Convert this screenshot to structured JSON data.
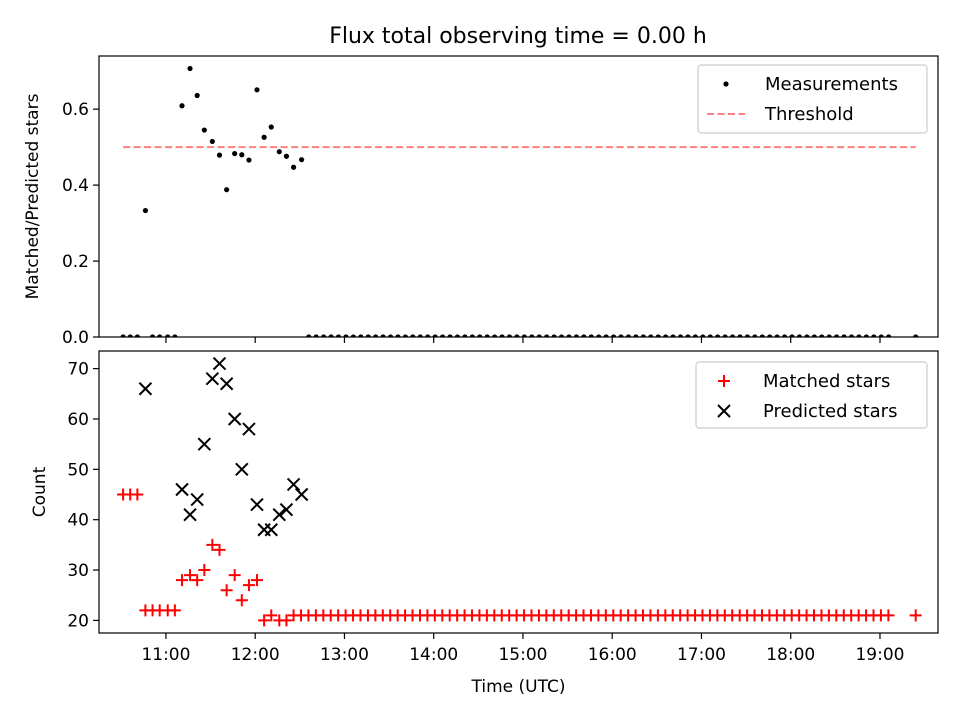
{
  "title": "Flux total observing time = 0.00 h",
  "chart_data": [
    {
      "type": "scatter",
      "ylabel": "Matched/Predicted stars",
      "xlim": [
        10.25,
        19.65
      ],
      "ylim": [
        0,
        0.74
      ],
      "x_ticks": [
        11,
        12,
        13,
        14,
        15,
        16,
        17,
        18,
        19
      ],
      "y_ticks": [
        {
          "value": 0.0,
          "label": "0.0"
        },
        {
          "value": 0.2,
          "label": "0.2"
        },
        {
          "value": 0.4,
          "label": "0.4"
        },
        {
          "value": 0.6,
          "label": "0.6"
        }
      ],
      "legend": {
        "location": "top-right"
      },
      "series": [
        {
          "name": "Measurements",
          "kind": "scatter",
          "marker": "dot",
          "color": "#000000",
          "points": [
            [
              10.52,
              0.0
            ],
            [
              10.6,
              0.0
            ],
            [
              10.68,
              0.0
            ],
            [
              10.77,
              0.333
            ],
            [
              10.85,
              0.0
            ],
            [
              10.93,
              0.0
            ],
            [
              11.02,
              0.0
            ],
            [
              11.1,
              0.0
            ],
            [
              11.18,
              0.609
            ],
            [
              11.27,
              0.707
            ],
            [
              11.35,
              0.636
            ],
            [
              11.43,
              0.545
            ],
            [
              11.52,
              0.515
            ],
            [
              11.6,
              0.479
            ],
            [
              11.68,
              0.388
            ],
            [
              11.77,
              0.483
            ],
            [
              11.85,
              0.48
            ],
            [
              11.93,
              0.466
            ],
            [
              12.02,
              0.651
            ],
            [
              12.1,
              0.526
            ],
            [
              12.18,
              0.553
            ],
            [
              12.27,
              0.488
            ],
            [
              12.35,
              0.476
            ],
            [
              12.43,
              0.447
            ],
            [
              12.52,
              0.467
            ]
          ],
          "zero_run": {
            "start": 12.6,
            "end": 19.15,
            "step": 0.0833
          },
          "extra_points": [
            [
              19.4,
              0.0
            ]
          ]
        },
        {
          "name": "Threshold",
          "kind": "line",
          "style": "dashed",
          "color": "#ff7f7f",
          "points": [
            [
              10.52,
              0.5
            ],
            [
              19.4,
              0.5
            ]
          ]
        }
      ]
    },
    {
      "type": "scatter",
      "ylabel": "Count",
      "xlabel": "Time (UTC)",
      "xlim": [
        10.25,
        19.65
      ],
      "ylim": [
        17.5,
        73.5
      ],
      "x_ticks": [
        {
          "value": 11,
          "label": "11:00"
        },
        {
          "value": 12,
          "label": "12:00"
        },
        {
          "value": 13,
          "label": "13:00"
        },
        {
          "value": 14,
          "label": "14:00"
        },
        {
          "value": 15,
          "label": "15:00"
        },
        {
          "value": 16,
          "label": "16:00"
        },
        {
          "value": 17,
          "label": "17:00"
        },
        {
          "value": 18,
          "label": "18:00"
        },
        {
          "value": 19,
          "label": "19:00"
        }
      ],
      "y_ticks": [
        {
          "value": 20,
          "label": "20"
        },
        {
          "value": 30,
          "label": "30"
        },
        {
          "value": 40,
          "label": "40"
        },
        {
          "value": 50,
          "label": "50"
        },
        {
          "value": 60,
          "label": "60"
        },
        {
          "value": 70,
          "label": "70"
        }
      ],
      "legend": {
        "location": "top-right"
      },
      "series": [
        {
          "name": "Matched stars",
          "kind": "scatter",
          "marker": "plus",
          "color": "#ff0000",
          "points": [
            [
              10.52,
              45
            ],
            [
              10.6,
              45
            ],
            [
              10.68,
              45
            ],
            [
              10.77,
              22
            ],
            [
              10.85,
              22
            ],
            [
              10.93,
              22
            ],
            [
              11.02,
              22
            ],
            [
              11.1,
              22
            ],
            [
              11.18,
              28
            ],
            [
              11.27,
              29
            ],
            [
              11.35,
              28
            ],
            [
              11.43,
              30
            ],
            [
              11.52,
              35
            ],
            [
              11.6,
              34
            ],
            [
              11.68,
              26
            ],
            [
              11.77,
              29
            ],
            [
              11.85,
              24
            ],
            [
              11.93,
              27
            ],
            [
              12.02,
              28
            ],
            [
              12.1,
              20
            ],
            [
              12.18,
              21
            ],
            [
              12.27,
              20
            ],
            [
              12.35,
              20
            ]
          ],
          "run": {
            "start": 12.43,
            "end": 19.15,
            "step": 0.0833,
            "value": 21
          },
          "extra_points": [
            [
              19.4,
              21
            ]
          ]
        },
        {
          "name": "Predicted stars",
          "kind": "scatter",
          "marker": "x",
          "color": "#000000",
          "points": [
            [
              10.77,
              66
            ],
            [
              11.18,
              46
            ],
            [
              11.27,
              41
            ],
            [
              11.35,
              44
            ],
            [
              11.43,
              55
            ],
            [
              11.52,
              68
            ],
            [
              11.6,
              71
            ],
            [
              11.68,
              67
            ],
            [
              11.77,
              60
            ],
            [
              11.85,
              50
            ],
            [
              11.93,
              58
            ],
            [
              12.02,
              43
            ],
            [
              12.1,
              38
            ],
            [
              12.18,
              38
            ],
            [
              12.27,
              41
            ],
            [
              12.35,
              42
            ],
            [
              12.43,
              47
            ],
            [
              12.52,
              45
            ]
          ]
        }
      ]
    }
  ]
}
